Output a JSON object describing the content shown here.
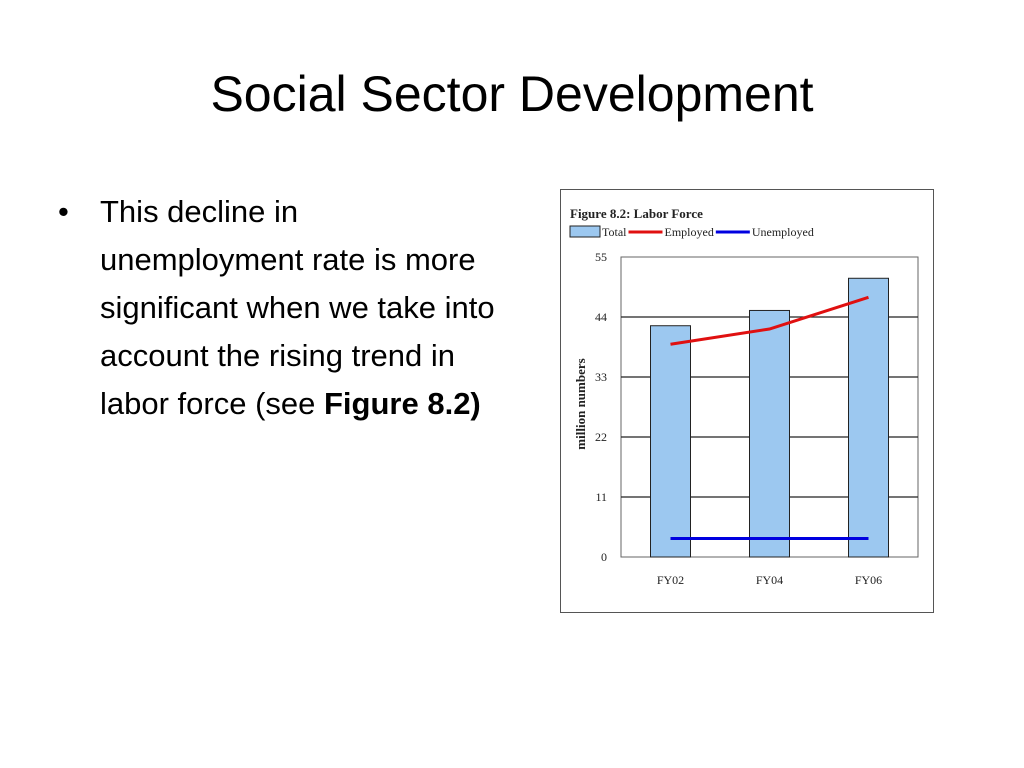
{
  "slide": {
    "title": "Social Sector Development",
    "bullet_text": "This decline in unemployment rate is more significant when we take into account the rising trend in labor force (see ",
    "bullet_bold": "Figure 8.2)"
  },
  "chart_data": {
    "type": "bar",
    "title": "Figure 8.2: Labor Force",
    "ylabel": "million numbers",
    "xlabel": "",
    "categories": [
      "FY02",
      "FY04",
      "FY06"
    ],
    "ylim": [
      0,
      55
    ],
    "yticks": [
      0,
      11,
      22,
      33,
      44,
      55
    ],
    "grid": true,
    "legend_position": "top",
    "series": [
      {
        "name": "Total",
        "kind": "bar",
        "color": "#9cc8f0",
        "values": [
          42.4,
          45.2,
          51.1
        ]
      },
      {
        "name": "Employed",
        "kind": "line",
        "color": "#e01010",
        "values": [
          39.0,
          41.8,
          47.6
        ]
      },
      {
        "name": "Unemployed",
        "kind": "line",
        "color": "#0000e0",
        "values": [
          3.4,
          3.4,
          3.4
        ]
      }
    ]
  }
}
